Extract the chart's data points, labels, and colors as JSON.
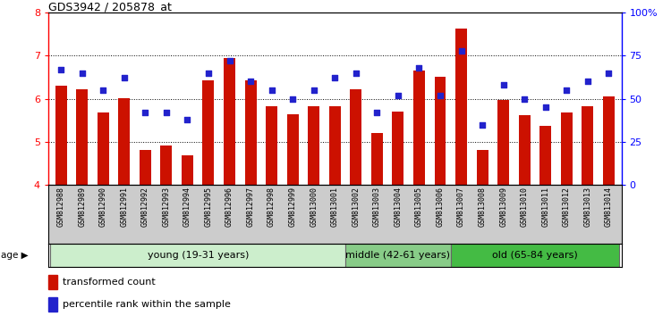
{
  "title": "GDS3942 / 205878_at",
  "samples": [
    "GSM812988",
    "GSM812989",
    "GSM812990",
    "GSM812991",
    "GSM812992",
    "GSM812993",
    "GSM812994",
    "GSM812995",
    "GSM812996",
    "GSM812997",
    "GSM812998",
    "GSM812999",
    "GSM813000",
    "GSM813001",
    "GSM813002",
    "GSM813003",
    "GSM813004",
    "GSM813005",
    "GSM813006",
    "GSM813007",
    "GSM813008",
    "GSM813009",
    "GSM813010",
    "GSM813011",
    "GSM813012",
    "GSM813013",
    "GSM813014"
  ],
  "bar_values": [
    6.3,
    6.22,
    5.68,
    6.02,
    4.82,
    4.92,
    4.68,
    6.42,
    6.95,
    6.42,
    5.82,
    5.65,
    5.82,
    5.82,
    6.22,
    5.21,
    5.7,
    6.65,
    6.52,
    7.62,
    4.82,
    5.98,
    5.62,
    5.38,
    5.68,
    5.82,
    6.05
  ],
  "dot_values_pct": [
    67,
    65,
    55,
    62,
    42,
    42,
    38,
    65,
    72,
    60,
    55,
    50,
    55,
    62,
    65,
    42,
    52,
    68,
    52,
    78,
    35,
    58,
    50,
    45,
    55,
    60,
    65
  ],
  "bar_color": "#cc1100",
  "dot_color": "#2222cc",
  "ylim_left": [
    4,
    8
  ],
  "yticks_left": [
    4,
    5,
    6,
    7,
    8
  ],
  "ylim_right": [
    0,
    100
  ],
  "yticks_right": [
    0,
    25,
    50,
    75,
    100
  ],
  "yticklabels_right": [
    "0",
    "25",
    "50",
    "75",
    "100%"
  ],
  "groups": [
    {
      "label": "young (19-31 years)",
      "start": 0,
      "end": 14,
      "color": "#cceecc"
    },
    {
      "label": "middle (42-61 years)",
      "start": 14,
      "end": 19,
      "color": "#88cc88"
    },
    {
      "label": "old (65-84 years)",
      "start": 19,
      "end": 27,
      "color": "#44bb44"
    }
  ],
  "xtick_bg_color": "#cccccc",
  "bar_width": 0.55,
  "legend_items": [
    {
      "label": "transformed count",
      "color": "#cc1100"
    },
    {
      "label": "percentile rank within the sample",
      "color": "#2222cc"
    }
  ]
}
